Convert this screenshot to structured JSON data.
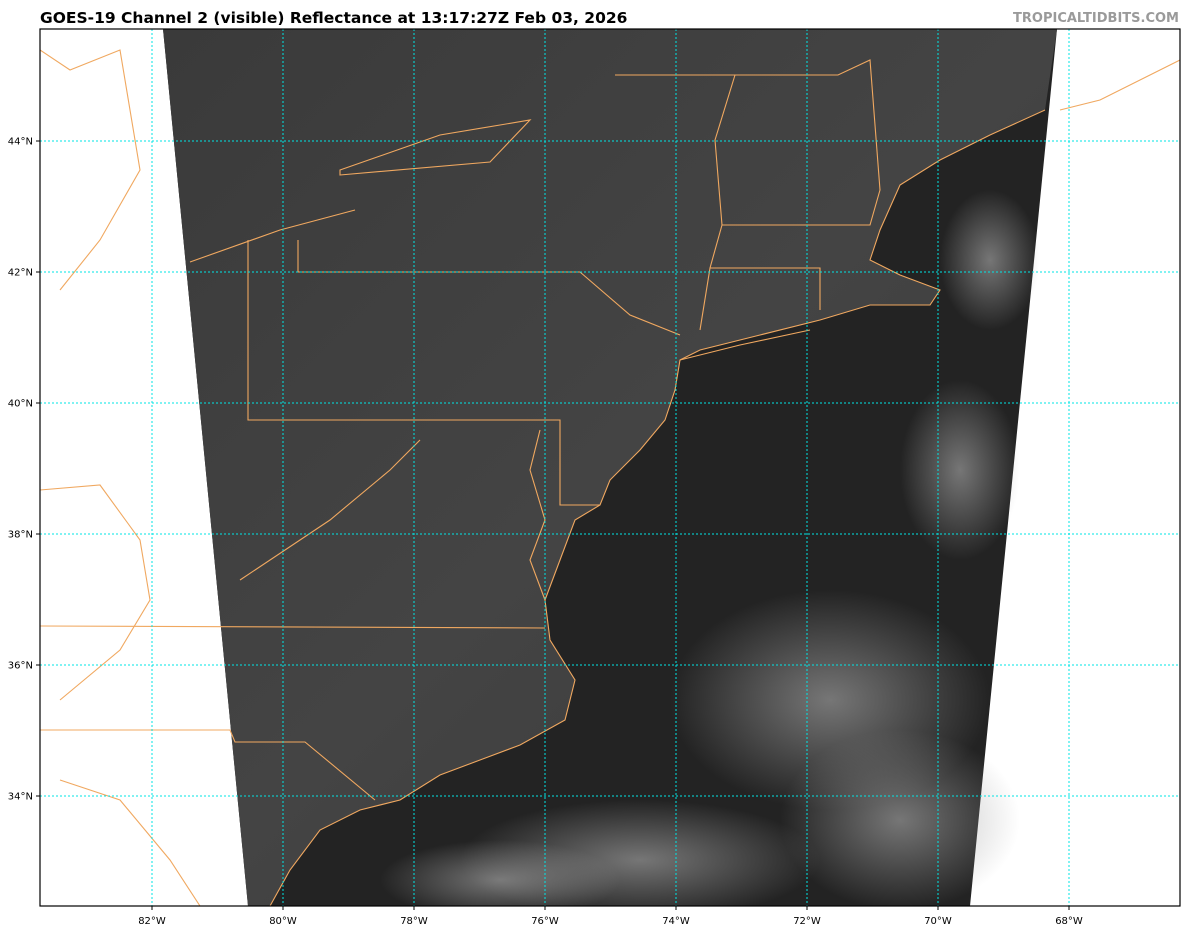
{
  "header": {
    "title": "GOES-19 Channel 2 (visible) Reflectance at 13:17:27Z Feb 03, 2026",
    "credit": "TROPICALTIDBITS.COM"
  },
  "map": {
    "product": "visible reflectance imagery",
    "extent": {
      "lon": [
        -83.7,
        -65.6
      ],
      "lat": [
        32.4,
        45.7
      ]
    },
    "lat_gridlines": [
      {
        "value": 44,
        "label": "44°N"
      },
      {
        "value": 42,
        "label": "42°N"
      },
      {
        "value": 40,
        "label": "40°N"
      },
      {
        "value": 38,
        "label": "38°N"
      },
      {
        "value": 36,
        "label": "36°N"
      },
      {
        "value": 34,
        "label": "34°N"
      }
    ],
    "lon_gridlines": [
      {
        "value": -82,
        "label": "82°W"
      },
      {
        "value": -80,
        "label": "80°W"
      },
      {
        "value": -78,
        "label": "78°W"
      },
      {
        "value": -76,
        "label": "76°W"
      },
      {
        "value": -74,
        "label": "74°W"
      },
      {
        "value": -72,
        "label": "72°W"
      },
      {
        "value": -70,
        "label": "70°W"
      },
      {
        "value": -68,
        "label": "68°W"
      }
    ],
    "colors": {
      "coastline": "#f0a860",
      "gridline": "#00e5e5",
      "ocean_dark": "#232323",
      "land_gray": "#3c3c3c",
      "background": "#ffffff"
    }
  }
}
